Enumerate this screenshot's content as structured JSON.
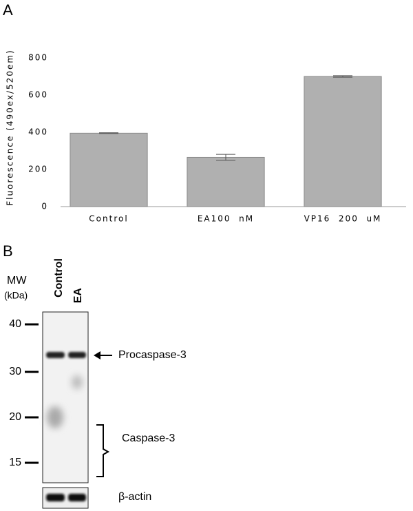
{
  "panel_a": {
    "label": "A"
  },
  "chart_data": {
    "type": "bar",
    "ylabel": "Fluorescence (490ex/520em)",
    "categories": [
      "Control",
      "EA100  nM",
      "VP16  200  uM"
    ],
    "values": [
      395,
      265,
      700
    ],
    "errors": [
      2,
      16,
      4
    ],
    "color": "#b0b0b0",
    "ylim": [
      0,
      800
    ],
    "yticks": [
      0,
      200,
      400,
      600,
      800
    ]
  },
  "blot": {
    "panel_label": "B",
    "mw_title": "MW",
    "mw_unit": "(kDa)",
    "lanes": [
      "Control",
      "EA"
    ],
    "mw_markers": [
      "40",
      "30",
      "20",
      "15"
    ],
    "labels": {
      "procaspase": "Procaspase-3",
      "caspase": "Caspase-3",
      "actin": "β-actin"
    }
  }
}
